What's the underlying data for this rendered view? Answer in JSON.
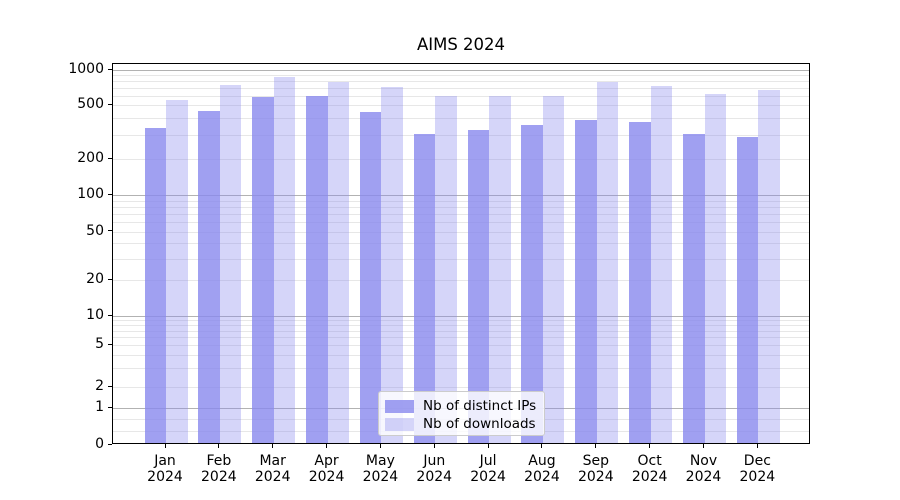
{
  "title": "AIMS 2024",
  "chart_data": {
    "type": "bar",
    "title": "AIMS 2024",
    "xlabel": "",
    "ylabel": "",
    "categories": [
      "Jan",
      "Feb",
      "Mar",
      "Apr",
      "May",
      "Jun",
      "Jul",
      "Aug",
      "Sep",
      "Oct",
      "Nov",
      "Dec"
    ],
    "year": "2024",
    "series": [
      {
        "name": "Nb of distinct IPs",
        "color": "rgba(136,136,238,0.8)",
        "values": [
          330,
          440,
          563,
          581,
          429,
          297,
          318,
          346,
          377,
          366,
          297,
          281
        ]
      },
      {
        "name": "Nb of downloads",
        "color": "rgba(136,136,238,0.35)",
        "values": [
          533,
          720,
          843,
          761,
          684,
          574,
          578,
          580,
          755,
          707,
          600,
          653
        ]
      }
    ],
    "y_scale": "symlog",
    "y_ticks": [
      0,
      1,
      2,
      5,
      10,
      20,
      50,
      100,
      200,
      500,
      1000
    ],
    "y_major_gridlines": [
      1,
      10,
      100,
      1000
    ],
    "y_minor_gridlines": [
      0.4,
      0.7,
      2,
      3,
      4,
      5,
      6,
      7,
      8,
      9,
      20,
      30,
      40,
      50,
      60,
      70,
      80,
      90,
      200,
      300,
      400,
      500,
      600,
      700,
      800,
      900
    ],
    "ylim": [
      0,
      1100
    ],
    "grid": "horizontal, major and minor",
    "legend_position": "inside lower-center",
    "bar_arrangement": "grouped pair per month, IPs left of tick, downloads right of tick"
  },
  "legend": {
    "entries": [
      "Nb of distinct IPs",
      "Nb of downloads"
    ]
  },
  "colors": {
    "bar_base": "#8888ee",
    "distinct_ips_rendered": "#a4a4ee",
    "downloads_rendered": "#d8d8f6",
    "major_grid": "#b2b2b2",
    "minor_grid": "#e7e7e7",
    "axis_frame": "#000000",
    "legend_border": "#cccccc",
    "background": "#ffffff"
  }
}
